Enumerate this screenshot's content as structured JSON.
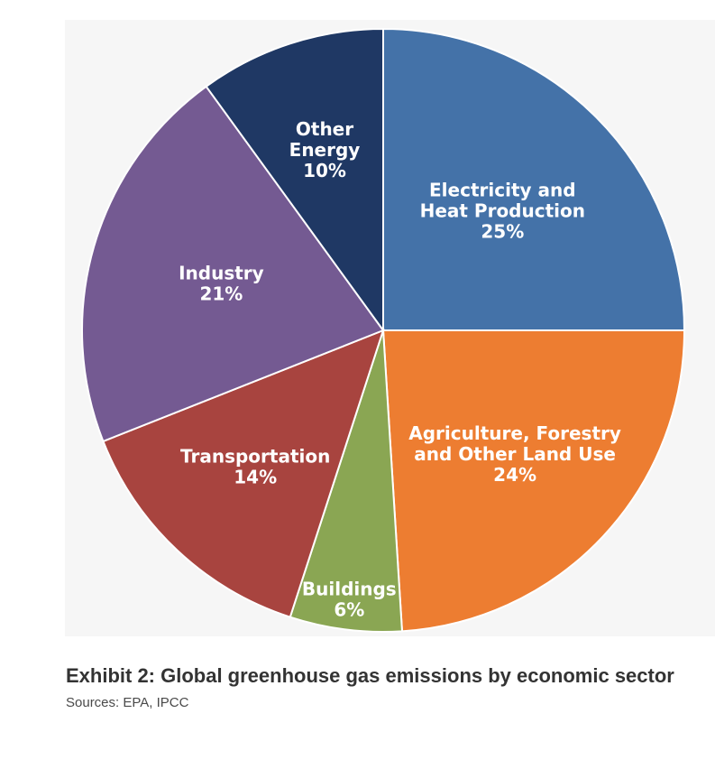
{
  "chart_data": {
    "type": "pie",
    "slices": [
      {
        "label_lines": [
          "Electricity and",
          "Heat Production"
        ],
        "value_label": "25%",
        "value": 25,
        "color": "#4472a8"
      },
      {
        "label_lines": [
          "Agriculture, Forestry",
          "and Other Land Use"
        ],
        "value_label": "24%",
        "value": 24,
        "color": "#ed7d31"
      },
      {
        "label_lines": [
          "Buildings"
        ],
        "value_label": "6%",
        "value": 6,
        "color": "#8aa653"
      },
      {
        "label_lines": [
          "Transportation"
        ],
        "value_label": "14%",
        "value": 14,
        "color": "#a8443f"
      },
      {
        "label_lines": [
          "Industry"
        ],
        "value_label": "21%",
        "value": 21,
        "color": "#745a92"
      },
      {
        "label_lines": [
          "Other",
          "Energy"
        ],
        "value_label": "10%",
        "value": 10,
        "color": "#1f3864"
      }
    ]
  },
  "caption": {
    "title": "Exhibit 2: Global greenhouse gas emissions by economic sector",
    "source": "Sources: EPA, IPCC"
  }
}
